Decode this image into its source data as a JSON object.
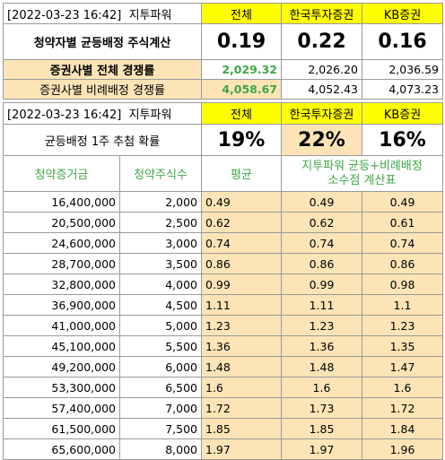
{
  "table1": {
    "timestamp": "[2022-03-23 16:42]",
    "brand": "지투파워",
    "columns": [
      "전체",
      "한국투자증권",
      "KB증권"
    ],
    "row_shares": {
      "label": "청약자별 균등배정 주식계산",
      "values": [
        "0.19",
        "0.22",
        "0.16"
      ]
    },
    "row_competition": {
      "label": "증권사별 전체 경쟁률",
      "values": [
        "2,029.32",
        "2,026.20",
        "2,036.59"
      ]
    },
    "row_proportional": {
      "label": "증권사별 비례배정 경쟁률",
      "values": [
        "4,058.67",
        "4,052.43",
        "4,073.23"
      ]
    }
  },
  "table2": {
    "timestamp": "[2022-03-23 16:42]",
    "brand": "지투파워",
    "columns": [
      "전체",
      "한국투자증권",
      "KB증권"
    ],
    "row_probability": {
      "label": "균등배정 1주 추첨 확률",
      "values": [
        "19%",
        "22%",
        "16%"
      ]
    },
    "col_headers": {
      "deposit": "청약증거금",
      "shares": "청약주식수",
      "average": "평균",
      "calc_line1": "지투파워 균등+비례배정",
      "calc_line2": "소수점 계산표"
    },
    "rows": [
      {
        "deposit": "16,400,000",
        "shares": "2,000",
        "avg": "0.49",
        "hk": "0.49",
        "kb": "0.49"
      },
      {
        "deposit": "20,500,000",
        "shares": "2,500",
        "avg": "0.62",
        "hk": "0.62",
        "kb": "0.61"
      },
      {
        "deposit": "24,600,000",
        "shares": "3,000",
        "avg": "0.74",
        "hk": "0.74",
        "kb": "0.74"
      },
      {
        "deposit": "28,700,000",
        "shares": "3,500",
        "avg": "0.86",
        "hk": "0.86",
        "kb": "0.86"
      },
      {
        "deposit": "32,800,000",
        "shares": "4,000",
        "avg": "0.99",
        "hk": "0.99",
        "kb": "0.98"
      },
      {
        "deposit": "36,900,000",
        "shares": "4,500",
        "avg": "1.11",
        "hk": "1.11",
        "kb": "1.1"
      },
      {
        "deposit": "41,000,000",
        "shares": "5,000",
        "avg": "1.23",
        "hk": "1.23",
        "kb": "1.23"
      },
      {
        "deposit": "45,100,000",
        "shares": "5,500",
        "avg": "1.36",
        "hk": "1.36",
        "kb": "1.35"
      },
      {
        "deposit": "49,200,000",
        "shares": "6,000",
        "avg": "1.48",
        "hk": "1.48",
        "kb": "1.47"
      },
      {
        "deposit": "53,300,000",
        "shares": "6,500",
        "avg": "1.6",
        "hk": "1.6",
        "kb": "1.6"
      },
      {
        "deposit": "57,400,000",
        "shares": "7,000",
        "avg": "1.72",
        "hk": "1.73",
        "kb": "1.72"
      },
      {
        "deposit": "61,500,000",
        "shares": "7,500",
        "avg": "1.85",
        "hk": "1.85",
        "kb": "1.84"
      },
      {
        "deposit": "65,600,000",
        "shares": "8,000",
        "avg": "1.97",
        "hk": "1.97",
        "kb": "1.96"
      }
    ]
  },
  "colors": {
    "highlight_yellow": "#ffff00",
    "tan": "#fce4b6",
    "green": "#3fa648"
  }
}
